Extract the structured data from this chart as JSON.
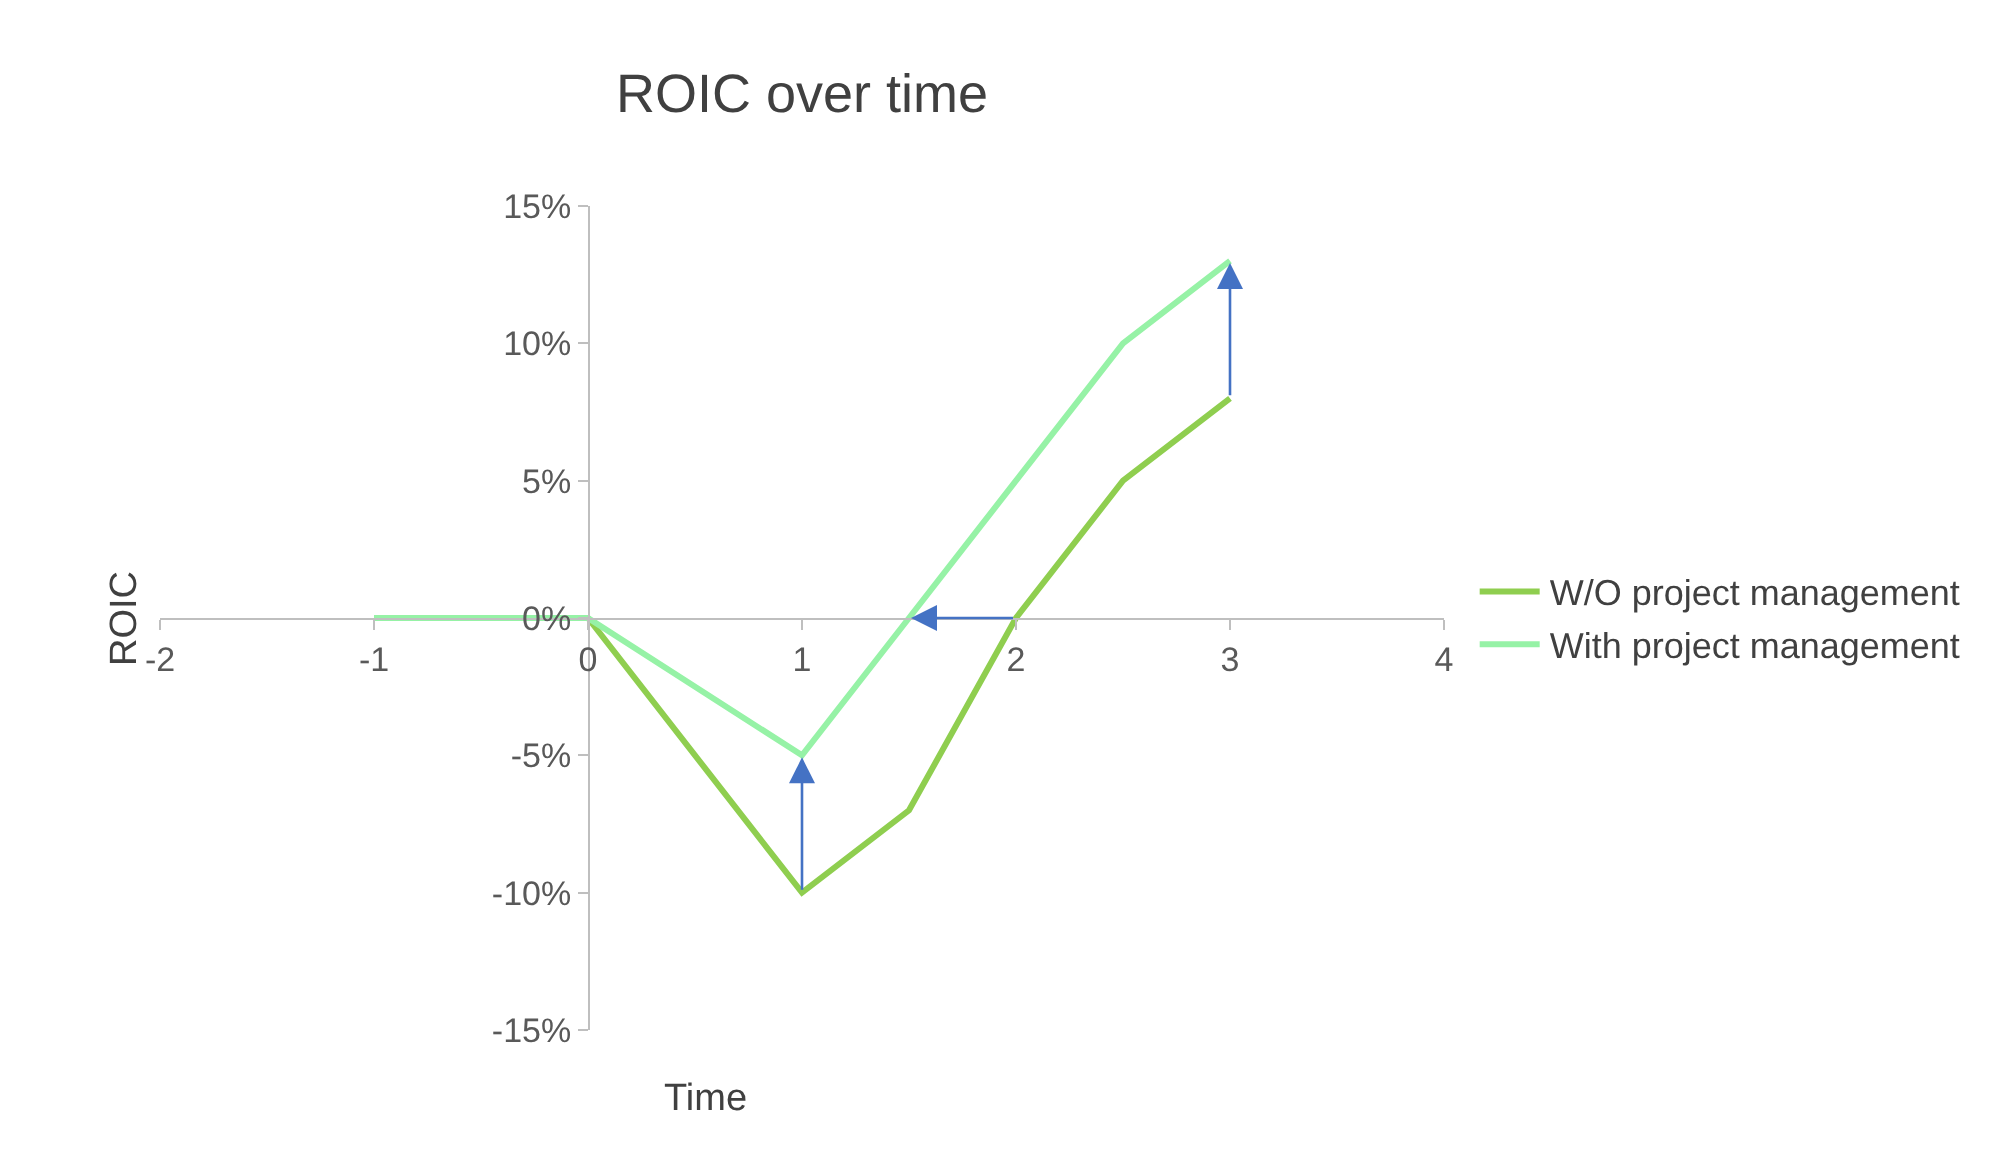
{
  "chart_data": {
    "type": "line",
    "title": "ROIC over time",
    "xlabel": "Time",
    "ylabel": "ROIC",
    "series": [
      {
        "name": "W/O project management",
        "color": "#8fce4f",
        "x": [
          -1,
          0,
          1,
          1.5,
          2,
          2.5,
          3
        ],
        "values": [
          0,
          0,
          -10,
          -7,
          0,
          5,
          8
        ]
      },
      {
        "name": "With project management",
        "color": "#96f2a6",
        "x": [
          -1,
          0,
          1,
          1.5,
          2,
          2.5,
          3
        ],
        "values": [
          0,
          0,
          -5,
          0,
          5,
          10,
          13
        ]
      }
    ],
    "xlim": [
      -2,
      4
    ],
    "xticks": [
      -2,
      -1,
      0,
      1,
      2,
      3,
      4
    ],
    "ylim": [
      -15,
      15
    ],
    "yticks": [
      {
        "value": -15,
        "label": "-15%"
      },
      {
        "value": -10,
        "label": "-10%"
      },
      {
        "value": -5,
        "label": "-5%"
      },
      {
        "value": 0,
        "label": "0%"
      },
      {
        "value": 5,
        "label": "5%"
      },
      {
        "value": 10,
        "label": "10%"
      },
      {
        "value": 15,
        "label": "15%"
      }
    ],
    "grid": false,
    "legend": "right",
    "marker": "none",
    "line_style": "solid"
  }
}
